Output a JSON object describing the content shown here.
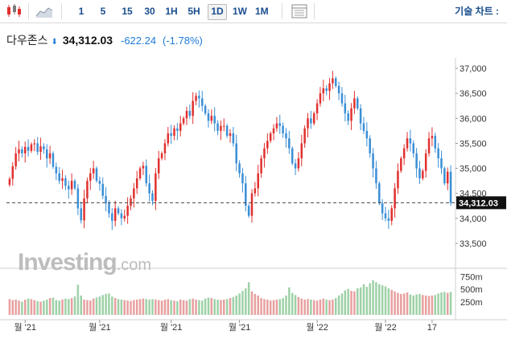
{
  "toolbar": {
    "timeframes": [
      "1",
      "5",
      "15",
      "30",
      "1H",
      "5H",
      "1D",
      "1W",
      "1M"
    ],
    "active_timeframe": "1D",
    "chart_settings_label": "기술 차트 :"
  },
  "header": {
    "name": "다우존스",
    "price": "34,312.03",
    "change": "-622.24",
    "change_pct": "(-1.78%)"
  },
  "logo": {
    "brand": "Investing",
    "suffix": ".com"
  },
  "colors": {
    "up": "#e0312f",
    "down": "#3b8fd6",
    "vol_up": "#e8a0a0",
    "vol_down": "#9ed1a7",
    "current_label_bg": "#111111"
  },
  "chart_data": {
    "type": "candlestick",
    "y_ticks": [
      "37,000",
      "36,500",
      "36,000",
      "35,500",
      "35,000",
      "34,500",
      "34,000",
      "33,500"
    ],
    "y_range": [
      33000,
      37050
    ],
    "current_price": 34312.03,
    "current_price_label": "34,312.03",
    "volume_ticks": [
      "750m",
      "500m",
      "250m"
    ],
    "volume_range": [
      0,
      850
    ],
    "x_labels": [
      "월 '21",
      "월 '21",
      "월 '21",
      "월 '21",
      "월 '22",
      "월 '22",
      "17"
    ],
    "x_label_positions": [
      5,
      29,
      52,
      74,
      99,
      121,
      136
    ],
    "closes": [
      34790,
      35040,
      35300,
      35380,
      35300,
      35430,
      35350,
      35480,
      35500,
      35330,
      35440,
      35380,
      35200,
      35300,
      35030,
      34900,
      34750,
      34800,
      34650,
      34580,
      34750,
      34600,
      34200,
      33960,
      34400,
      34750,
      34900,
      35000,
      34750,
      34690,
      34450,
      34300,
      34100,
      33950,
      34200,
      34100,
      34000,
      34050,
      34250,
      34400,
      34600,
      34800,
      35000,
      35050,
      34700,
      34500,
      34350,
      34900,
      35200,
      35300,
      35500,
      35700,
      35650,
      35800,
      35750,
      35900,
      36000,
      36150,
      36050,
      36350,
      36450,
      36400,
      36250,
      36100,
      35950,
      36050,
      35900,
      35750,
      35850,
      35850,
      35650,
      35700,
      35500,
      35100,
      34900,
      34700,
      34250,
      34050,
      34500,
      34600,
      34900,
      35200,
      35400,
      35550,
      35700,
      35800,
      35900,
      35850,
      35700,
      35600,
      35400,
      35100,
      35000,
      35200,
      35500,
      35800,
      36000,
      35900,
      36100,
      36300,
      36500,
      36600,
      36550,
      36700,
      36800,
      36650,
      36500,
      36300,
      36100,
      35950,
      36200,
      36400,
      36200,
      35900,
      35750,
      35600,
      35300,
      35000,
      34700,
      34300,
      34100,
      34000,
      33950,
      34200,
      34600,
      34950,
      35200,
      35400,
      35600,
      35500,
      35300,
      35000,
      34800,
      34950,
      35300,
      35600,
      35650,
      35400,
      35200,
      35000,
      34700,
      34934,
      34312
    ],
    "volumes": [
      310,
      290,
      300,
      280,
      260,
      300,
      320,
      310,
      290,
      270,
      260,
      280,
      300,
      330,
      340,
      290,
      280,
      300,
      320,
      310,
      330,
      360,
      590,
      380,
      300,
      290,
      280,
      320,
      340,
      360,
      390,
      410,
      420,
      360,
      330,
      310,
      300,
      290,
      280,
      270,
      290,
      300,
      310,
      320,
      310,
      300,
      310,
      300,
      290,
      280,
      300,
      310,
      290,
      280,
      270,
      300,
      290,
      280,
      310,
      320,
      300,
      290,
      280,
      320,
      340,
      330,
      310,
      300,
      290,
      300,
      310,
      330,
      350,
      380,
      420,
      470,
      520,
      640,
      460,
      410,
      380,
      330,
      310,
      300,
      280,
      290,
      300,
      310,
      330,
      380,
      540,
      430,
      390,
      350,
      320,
      300,
      310,
      300,
      290,
      280,
      300,
      320,
      300,
      290,
      300,
      330,
      380,
      420,
      480,
      510,
      470,
      460,
      520,
      540,
      600,
      550,
      620,
      680,
      640,
      600,
      580,
      560,
      520,
      490,
      460,
      430,
      410,
      420,
      440,
      400,
      380,
      400,
      410,
      390,
      380,
      370,
      380,
      390,
      420,
      440,
      450,
      430,
      450
    ]
  }
}
